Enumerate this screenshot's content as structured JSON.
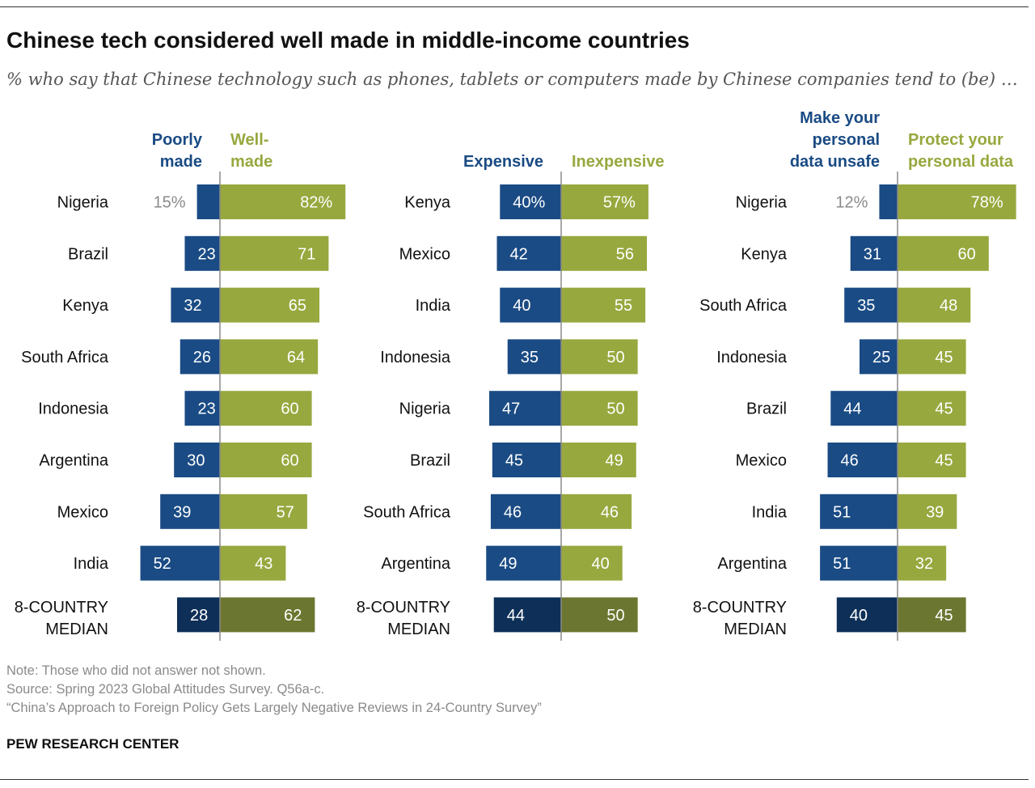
{
  "title": "Chinese tech considered well made in middle-income countries",
  "subtitle": "% who say that Chinese technology such as phones, tablets or computers made by Chinese companies tend to (be) …",
  "colors": {
    "negative": "#1a4b84",
    "positive": "#97a83e",
    "negative_median": "#0e2f57",
    "positive_median": "#6b7630",
    "outside_label": "#8a8a8a",
    "inside_label": "#ffffff",
    "country_label": "#111111"
  },
  "chart_data": [
    {
      "type": "bar",
      "orientation": "diverging-horizontal",
      "series": [
        {
          "name": "Poorly made",
          "values": [
            15,
            23,
            32,
            26,
            23,
            30,
            39,
            52,
            28
          ]
        },
        {
          "name": "Well-made",
          "values": [
            82,
            71,
            65,
            64,
            60,
            60,
            57,
            43,
            62
          ]
        }
      ],
      "categories": [
        "Nigeria",
        "Brazil",
        "Kenya",
        "South Africa",
        "Indonesia",
        "Argentina",
        "Mexico",
        "India",
        "8-COUNTRY MEDIAN"
      ],
      "labels_left": [
        "15%",
        "23",
        "32",
        "26",
        "23",
        "30",
        "39",
        "52",
        "28"
      ],
      "labels_right": [
        "82%",
        "71",
        "65",
        "64",
        "60",
        "60",
        "57",
        "43",
        "62"
      ],
      "header_left": [
        "Poorly",
        "made"
      ],
      "header_right": [
        "Well-",
        "made"
      ]
    },
    {
      "type": "bar",
      "orientation": "diverging-horizontal",
      "series": [
        {
          "name": "Expensive",
          "values": [
            40,
            42,
            40,
            35,
            47,
            45,
            46,
            49,
            44
          ]
        },
        {
          "name": "Inexpensive",
          "values": [
            57,
            56,
            55,
            50,
            50,
            49,
            46,
            40,
            50
          ]
        }
      ],
      "categories": [
        "Kenya",
        "Mexico",
        "India",
        "Indonesia",
        "Nigeria",
        "Brazil",
        "South Africa",
        "Argentina",
        "8-COUNTRY MEDIAN"
      ],
      "labels_left": [
        "40%",
        "42",
        "40",
        "35",
        "47",
        "45",
        "46",
        "49",
        "44"
      ],
      "labels_right": [
        "57%",
        "56",
        "55",
        "50",
        "50",
        "49",
        "46",
        "40",
        "50"
      ],
      "header_left": [
        "Expensive"
      ],
      "header_right": [
        "Inexpensive"
      ]
    },
    {
      "type": "bar",
      "orientation": "diverging-horizontal",
      "series": [
        {
          "name": "Make your personal data unsafe",
          "values": [
            12,
            31,
            35,
            25,
            44,
            46,
            51,
            51,
            40
          ]
        },
        {
          "name": "Protect your personal data",
          "values": [
            78,
            60,
            48,
            45,
            45,
            45,
            39,
            32,
            45
          ]
        }
      ],
      "categories": [
        "Nigeria",
        "Kenya",
        "South Africa",
        "Indonesia",
        "Brazil",
        "Mexico",
        "India",
        "Argentina",
        "8-COUNTRY MEDIAN"
      ],
      "labels_left": [
        "12%",
        "31",
        "35",
        "25",
        "44",
        "46",
        "51",
        "51",
        "40"
      ],
      "labels_right": [
        "78%",
        "60",
        "48",
        "45",
        "45",
        "45",
        "39",
        "32",
        "45"
      ],
      "header_left": [
        "Make your",
        "personal",
        "data unsafe"
      ],
      "header_right": [
        "Protect your",
        "personal data"
      ]
    }
  ],
  "notes": [
    "Note: Those who did not answer not shown.",
    "Source: Spring 2023 Global Attitudes Survey. Q56a-c.",
    "“China’s Approach to Foreign Policy Gets Largely Negative Reviews in 24-Country Survey”"
  ],
  "source_org": "PEW RESEARCH CENTER"
}
